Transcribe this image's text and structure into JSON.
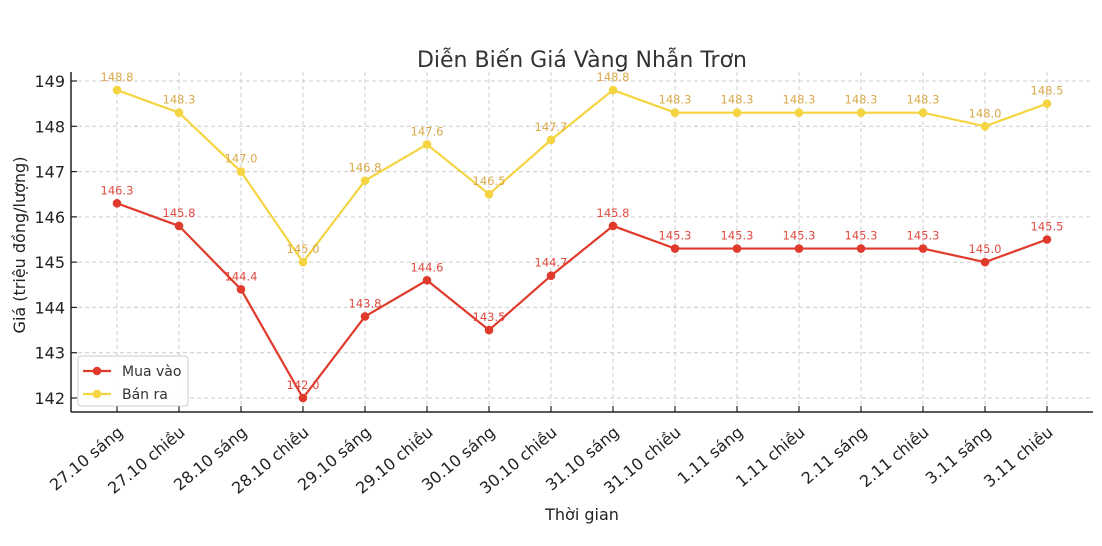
{
  "chart_data": {
    "type": "line",
    "title": "Diễn Biến Giá Vàng Nhẫn Trơn",
    "xlabel": "Thời gian",
    "ylabel": "Giá (triệu đồng/lượng)",
    "ylim": [
      141.7,
      149.2
    ],
    "yticks": [
      142,
      143,
      144,
      145,
      146,
      147,
      148,
      149
    ],
    "grid": true,
    "legend_position": "lower left",
    "categories": [
      "27.10 sáng",
      "27.10 chiều",
      "28.10 sáng",
      "28.10 chiều",
      "29.10 sáng",
      "29.10 chiều",
      "30.10 sáng",
      "30.10 chiều",
      "31.10 sáng",
      "31.10 chiều",
      "1.11 sáng",
      "1.11 chiều",
      "2.11 sáng",
      "2.11 chiều",
      "3.11 sáng",
      "3.11 chiều"
    ],
    "series": [
      {
        "name": "Mua vào",
        "color": "#e03a2c",
        "label_color": "#e04a40",
        "values": [
          146.3,
          145.8,
          144.4,
          142.0,
          143.8,
          144.6,
          143.5,
          144.7,
          145.8,
          145.3,
          145.3,
          145.3,
          145.3,
          145.3,
          145.0,
          145.5
        ]
      },
      {
        "name": "Bán ra",
        "color": "#f5d442",
        "label_color": "#d9a94a",
        "values": [
          148.8,
          148.3,
          147.0,
          145.0,
          146.8,
          147.6,
          146.5,
          147.7,
          148.8,
          148.3,
          148.3,
          148.3,
          148.3,
          148.3,
          148.0,
          148.5
        ]
      }
    ]
  }
}
